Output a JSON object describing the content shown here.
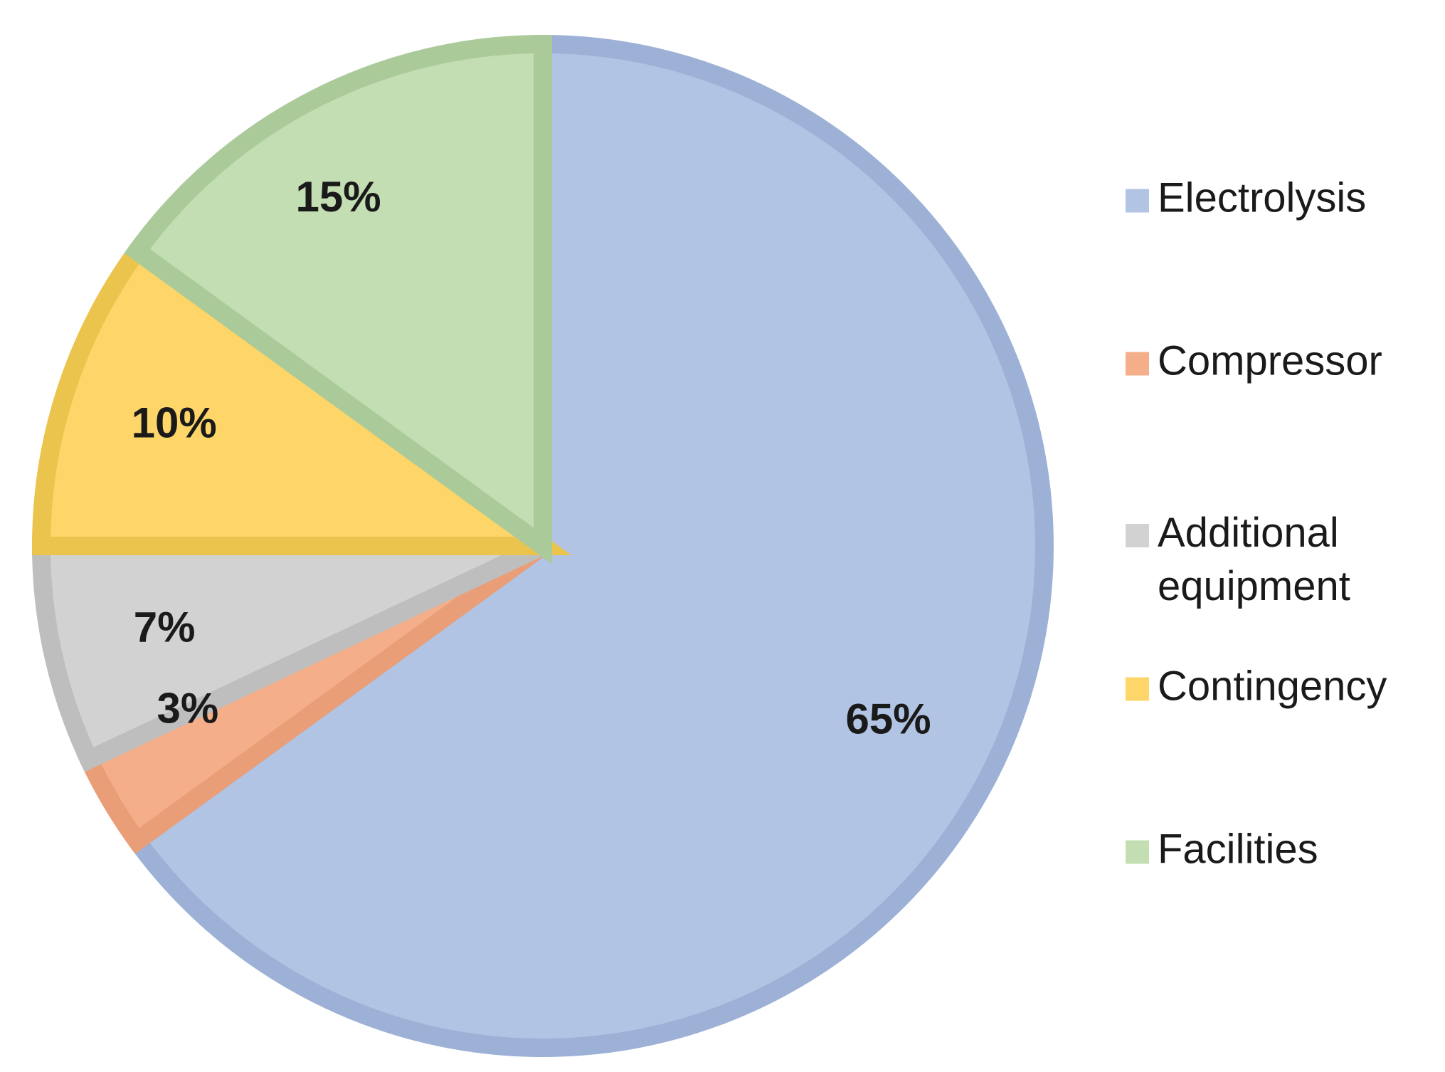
{
  "chart_data": {
    "type": "pie",
    "series": [
      {
        "name": "Electrolysis",
        "value": 65,
        "label": "65%",
        "fill": "#b1c4e4",
        "stroke": "#9db1d6"
      },
      {
        "name": "Compressor",
        "value": 3,
        "label": "3%",
        "fill": "#f5ae8a",
        "stroke": "#e99e78"
      },
      {
        "name": "Additional equipment",
        "value": 7,
        "label": "7%",
        "fill": "#d2d2d2",
        "stroke": "#bebebe"
      },
      {
        "name": "Contingency",
        "value": 10,
        "label": "10%",
        "fill": "#fdd568",
        "stroke": "#ebc44e"
      },
      {
        "name": "Facilities",
        "value": 15,
        "label": "15%",
        "fill": "#c4deb4",
        "stroke": "#abca9a"
      }
    ],
    "legend_placement": "right",
    "start_angle_deg": 0,
    "direction": "clockwise"
  }
}
